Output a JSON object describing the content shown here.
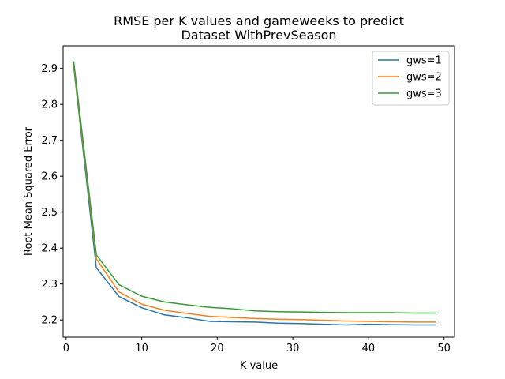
{
  "chart_data": {
    "type": "line",
    "title": "RMSE per K values and gameweeks to predict",
    "subtitle": "Dataset WithPrevSeason",
    "xlabel": "K value",
    "ylabel": "Root Mean Squared Error",
    "xlim": [
      -0.4,
      51.4
    ],
    "ylim": [
      2.152,
      2.963
    ],
    "xticks": [
      0,
      10,
      20,
      30,
      40,
      50
    ],
    "yticks": [
      2.2,
      2.3,
      2.4,
      2.5,
      2.6,
      2.7,
      2.8,
      2.9
    ],
    "grid": false,
    "legend_position": "top-right",
    "x": [
      1,
      4,
      7,
      10,
      13,
      16,
      19,
      22,
      25,
      28,
      31,
      34,
      37,
      40,
      43,
      46,
      49
    ],
    "series": [
      {
        "name": "gws=1",
        "color": "#1f77b4",
        "values": [
          2.905,
          2.345,
          2.265,
          2.234,
          2.214,
          2.206,
          2.196,
          2.195,
          2.194,
          2.191,
          2.19,
          2.188,
          2.186,
          2.188,
          2.187,
          2.186,
          2.186
        ]
      },
      {
        "name": "gws=2",
        "color": "#ff7f0e",
        "values": [
          2.912,
          2.37,
          2.278,
          2.244,
          2.227,
          2.218,
          2.21,
          2.207,
          2.204,
          2.202,
          2.201,
          2.199,
          2.197,
          2.196,
          2.195,
          2.194,
          2.194
        ]
      },
      {
        "name": "gws=3",
        "color": "#2ca02c",
        "values": [
          2.92,
          2.381,
          2.298,
          2.266,
          2.25,
          2.242,
          2.235,
          2.231,
          2.225,
          2.223,
          2.222,
          2.221,
          2.22,
          2.22,
          2.22,
          2.219,
          2.219
        ]
      }
    ]
  }
}
